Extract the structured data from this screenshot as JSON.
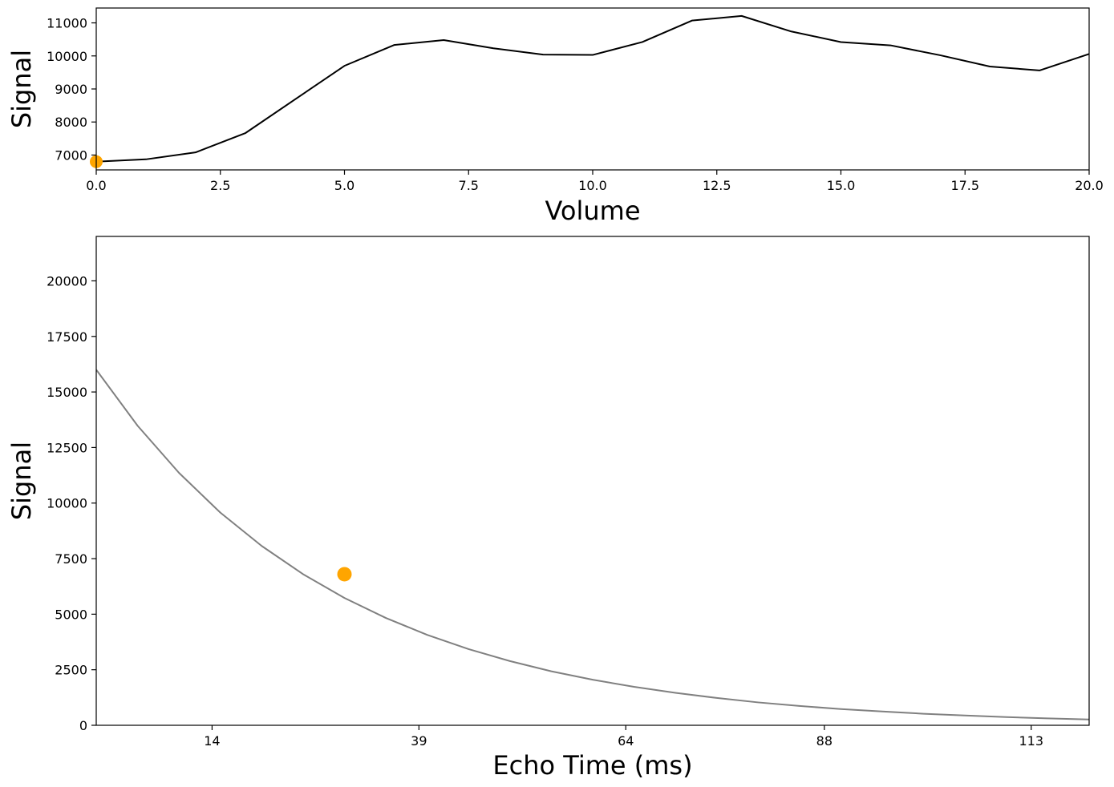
{
  "chart_data": [
    {
      "type": "line",
      "title": "",
      "xlabel": "Volume",
      "ylabel": "Signal",
      "xlim": [
        0,
        20
      ],
      "ylim": [
        6550,
        11450
      ],
      "xticks": [
        0,
        2.5,
        5,
        7.5,
        10,
        12.5,
        15,
        17.5,
        20
      ],
      "xtick_labels": [
        "0.0",
        "2.5",
        "5.0",
        "7.5",
        "10.0",
        "12.5",
        "15.0",
        "17.5",
        "20.0"
      ],
      "yticks": [
        7000,
        8000,
        9000,
        10000,
        11000
      ],
      "ytick_labels": [
        "7000",
        "8000",
        "9000",
        "10000",
        "11000"
      ],
      "grid": false,
      "series": [
        {
          "color": "#000000",
          "x": [
            0,
            1,
            2,
            3,
            4,
            5,
            6,
            7,
            8,
            9,
            10,
            11,
            12,
            13,
            14,
            15,
            16,
            17,
            18,
            19,
            20
          ],
          "y": [
            6800,
            6870,
            7080,
            7660,
            8680,
            9700,
            10330,
            10480,
            10230,
            10040,
            10030,
            10420,
            11070,
            11210,
            10740,
            10420,
            10320,
            10020,
            9680,
            9560,
            10060
          ]
        }
      ],
      "marker": {
        "x": 0,
        "y": 6800,
        "color": "#FFA500"
      }
    },
    {
      "type": "line",
      "title": "",
      "xlabel": "Echo Time (ms)",
      "ylabel": "Signal",
      "xlim": [
        0,
        120
      ],
      "ylim": [
        0,
        22000
      ],
      "xticks": [
        14,
        39,
        64,
        88,
        113
      ],
      "xtick_labels": [
        "14",
        "39",
        "64",
        "88",
        "113"
      ],
      "yticks": [
        0,
        2500,
        5000,
        7500,
        10000,
        12500,
        15000,
        17500,
        20000
      ],
      "ytick_labels": [
        "0",
        "2500",
        "5000",
        "7500",
        "10000",
        "12500",
        "15000",
        "17500",
        "20000"
      ],
      "grid": false,
      "series": [
        {
          "color": "#808080",
          "x": [
            0,
            5,
            10,
            15,
            20,
            25,
            30,
            35,
            40,
            45,
            50,
            55,
            60,
            65,
            70,
            75,
            80,
            85,
            90,
            95,
            100,
            105,
            110,
            115,
            120
          ],
          "y": [
            16000,
            13480,
            11360,
            9570,
            8070,
            6800,
            5730,
            4830,
            4070,
            3430,
            2890,
            2430,
            2050,
            1730,
            1460,
            1230,
            1030,
            870,
            730,
            620,
            520,
            440,
            370,
            310,
            260
          ]
        }
      ],
      "marker": {
        "x": 30,
        "y": 6800,
        "color": "#FFA500"
      }
    }
  ]
}
